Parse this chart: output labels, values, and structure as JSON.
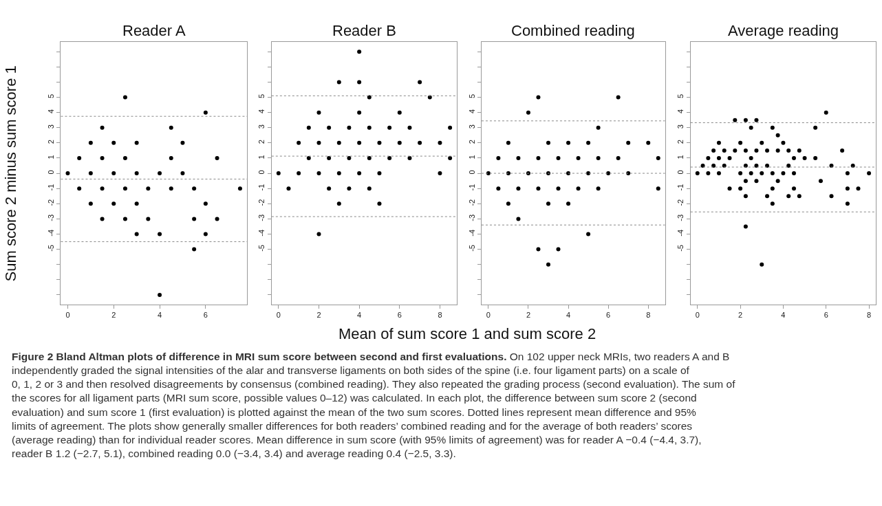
{
  "chart_data": [
    {
      "type": "scatter",
      "title": "Reader A",
      "ylabel": "Sum score 2 minus sum score 1",
      "annotations": [
        "Figure 2 Bland Altman plots of difference in MRI sum score between second and first evaluations. On 102 upper neck MRIs, two readers A and B independently graded the signal intensities of the alar and transverse ligaments on both sides of the spine (i.e. four ligament parts) on a scale of 0, 1, 2 or 3 and then resolved disagreements by consensus (combined reading). They also repeated the grading process (second evaluation). The sum of the scores for all ligament parts (MRI sum score, possible values 0–12) was calculated. In each plot, the difference between sum score 2 (second evaluation) and sum score 1 (first evaluation) is plotted against the mean of the two sum scores. Dotted lines represent mean difference and 95% limits of agreement. The plots show generally smaller differences for both readers’ combined reading and for the average of both readers’ scores (average reading) than for individual reader scores. Mean difference in sum score (with 95% limits of agreement) was for reader A −0.4 (−4.4, 3.7), reader B 1.2 (−2.7, 5.1), combined reading 0.0 (−3.4, 3.4) and average reading 0.4 (−2.5, 3.3)."
      ],
      "x": [
        0,
        0.5,
        0.5,
        1,
        1,
        1,
        1.5,
        1.5,
        1.5,
        1.5,
        2,
        2,
        2,
        2.5,
        2.5,
        2.5,
        2.5,
        3,
        3,
        3,
        3,
        3.5,
        3.5,
        4,
        4,
        4,
        4.5,
        4.5,
        4.5,
        5,
        5,
        5.5,
        5.5,
        5.5,
        6,
        6,
        6,
        6.5,
        6.5,
        7.5
      ],
      "values": [
        0,
        1,
        -1,
        2,
        0,
        -2,
        3,
        1,
        -1,
        -3,
        2,
        0,
        -2,
        5,
        1,
        -1,
        -3,
        2,
        0,
        -2,
        -4,
        -1,
        -3,
        0,
        -4,
        -8,
        3,
        1,
        -1,
        2,
        0,
        -1,
        -3,
        -5,
        4,
        -2,
        -4,
        1,
        -3,
        -1
      ],
      "color": "#000000",
      "marker": "circle",
      "xlim": [
        -0.3,
        7.8
      ],
      "xticks": [
        0,
        2,
        4,
        6
      ],
      "ylim": [
        -8.64,
        8.64
      ],
      "yticks": [
        {
          "value": -8,
          "label": null
        },
        {
          "value": -7,
          "label": null
        },
        {
          "value": -6,
          "label": null
        },
        -5,
        -4,
        -3,
        -2,
        -1,
        0,
        1,
        2,
        3,
        4,
        5,
        {
          "value": 6,
          "label": null
        },
        {
          "value": 7,
          "label": null
        },
        {
          "value": 8,
          "label": null
        }
      ],
      "ref_lines": [
        {
          "axis": "y",
          "value": 3.75,
          "color": "#888888",
          "line_style": "dotted"
        },
        {
          "axis": "y",
          "value": -0.38,
          "color": "#888888",
          "line_style": "dotted"
        },
        {
          "axis": "y",
          "value": -4.5,
          "color": "#888888",
          "line_style": "dotted"
        }
      ]
    },
    {
      "type": "scatter",
      "title": "Reader B",
      "xlabel": "Mean of sum score 1 and sum score 2",
      "x": [
        0,
        0.5,
        1,
        1,
        1.5,
        1.5,
        2,
        2,
        2,
        2,
        2.5,
        2.5,
        2.5,
        3,
        3,
        3,
        3,
        3.5,
        3.5,
        3.5,
        4,
        4,
        4,
        4,
        4,
        4.5,
        4.5,
        4.5,
        4.5,
        5,
        5,
        5,
        5.5,
        5.5,
        6,
        6,
        6.5,
        6.5,
        7,
        7,
        7.5,
        8,
        8,
        8.5,
        8.5
      ],
      "values": [
        0,
        -1,
        2,
        0,
        3,
        1,
        4,
        2,
        0,
        -4,
        3,
        1,
        -1,
        6,
        2,
        0,
        -2,
        3,
        1,
        -1,
        8,
        6,
        4,
        2,
        0,
        5,
        3,
        1,
        -1,
        2,
        0,
        -2,
        3,
        1,
        4,
        2,
        3,
        1,
        6,
        2,
        5,
        2,
        0,
        3,
        1
      ],
      "color": "#000000",
      "marker": "circle",
      "xlim": [
        -0.34,
        8.84
      ],
      "xticks": [
        0,
        2,
        4,
        6,
        8
      ],
      "ylim": [
        -8.64,
        8.64
      ],
      "yticks": [
        {
          "value": -8,
          "label": null
        },
        {
          "value": -7,
          "label": null
        },
        {
          "value": -6,
          "label": null
        },
        -5,
        -4,
        -3,
        -2,
        -1,
        0,
        1,
        2,
        3,
        4,
        5,
        {
          "value": 6,
          "label": null
        },
        {
          "value": 7,
          "label": null
        },
        {
          "value": 8,
          "label": null
        }
      ],
      "ref_lines": [
        {
          "axis": "y",
          "value": 5.1,
          "color": "#888888",
          "line_style": "dotted"
        },
        {
          "axis": "y",
          "value": 1.13,
          "color": "#888888",
          "line_style": "dotted"
        },
        {
          "axis": "y",
          "value": -2.85,
          "color": "#888888",
          "line_style": "dotted"
        }
      ]
    },
    {
      "type": "scatter",
      "title": "Combined reading",
      "x": [
        0,
        0.5,
        0.5,
        1,
        1,
        1,
        1.5,
        1.5,
        1.5,
        2,
        2,
        2.5,
        2.5,
        2.5,
        2.5,
        3,
        3,
        3,
        3,
        3.5,
        3.5,
        3.5,
        4,
        4,
        4,
        4.5,
        4.5,
        5,
        5,
        5,
        5.5,
        5.5,
        5.5,
        6,
        6.5,
        6.5,
        7,
        7,
        8,
        8.5,
        8.5
      ],
      "values": [
        0,
        1,
        -1,
        2,
        0,
        -2,
        1,
        -1,
        -3,
        4,
        0,
        5,
        1,
        -1,
        -5,
        2,
        0,
        -2,
        -6,
        1,
        -1,
        -5,
        2,
        0,
        -2,
        1,
        -1,
        2,
        0,
        -4,
        3,
        1,
        -1,
        0,
        5,
        1,
        2,
        0,
        2,
        1,
        -1
      ],
      "color": "#000000",
      "marker": "circle",
      "xlim": [
        -0.34,
        8.84
      ],
      "xticks": [
        0,
        2,
        4,
        6,
        8
      ],
      "ylim": [
        -8.64,
        8.64
      ],
      "yticks": [
        {
          "value": -8,
          "label": null
        },
        {
          "value": -7,
          "label": null
        },
        {
          "value": -6,
          "label": null
        },
        -5,
        -4,
        -3,
        -2,
        -1,
        0,
        1,
        2,
        3,
        4,
        5,
        {
          "value": 6,
          "label": null
        },
        {
          "value": 7,
          "label": null
        },
        {
          "value": 8,
          "label": null
        }
      ],
      "ref_lines": [
        {
          "axis": "y",
          "value": 3.45,
          "color": "#888888",
          "line_style": "dotted"
        },
        {
          "axis": "y",
          "value": 0.0,
          "color": "#888888",
          "line_style": "dotted"
        },
        {
          "axis": "y",
          "value": -3.4,
          "color": "#888888",
          "line_style": "dotted"
        }
      ]
    },
    {
      "type": "scatter",
      "title": "Average reading",
      "x": [
        1.75,
        2.25,
        2.75,
        6,
        2.5,
        3.5,
        5.5,
        3.75,
        1,
        2,
        3,
        4,
        0.75,
        1.25,
        1.75,
        2.25,
        2.75,
        3.25,
        3.75,
        4.25,
        4.75,
        6.75,
        0.5,
        1,
        1.5,
        2.5,
        4.5,
        5,
        5.5,
        0.25,
        0.75,
        1.25,
        2.25,
        2.75,
        3.25,
        4.25,
        6.25,
        7.25,
        0,
        0.5,
        1,
        2,
        2.5,
        3,
        3.5,
        4,
        4.5,
        7,
        8,
        2.25,
        2.75,
        3.75,
        5.75,
        1.5,
        2,
        3.5,
        4.5,
        7,
        7.5,
        2.25,
        3.25,
        4.25,
        4.75,
        6.25,
        3.5,
        7,
        2.25,
        3
      ],
      "values": [
        3.5,
        3.5,
        3.5,
        4,
        3,
        3,
        3,
        2.5,
        2,
        2,
        2,
        2,
        1.5,
        1.5,
        1.5,
        1.5,
        1.5,
        1.5,
        1.5,
        1.5,
        1.5,
        1.5,
        1,
        1,
        1,
        1,
        1,
        1,
        1,
        0.5,
        0.5,
        0.5,
        0.5,
        0.5,
        0.5,
        0.5,
        0.5,
        0.5,
        0,
        0,
        0,
        0,
        0,
        0,
        0,
        0,
        0,
        0,
        0,
        -0.5,
        -0.5,
        -0.5,
        -0.5,
        -1,
        -1,
        -1,
        -1,
        -1,
        -1,
        -1.5,
        -1.5,
        -1.5,
        -1.5,
        -1.5,
        -2,
        -2,
        -3.5,
        -6
      ],
      "color": "#000000",
      "marker": "circle",
      "xlim": [
        -0.32,
        8.32
      ],
      "xticks": [
        0,
        2,
        4,
        6,
        8
      ],
      "ylim": [
        -8.64,
        8.64
      ],
      "yticks": [
        {
          "value": -8,
          "label": null
        },
        {
          "value": -7,
          "label": null
        },
        {
          "value": -6,
          "label": null
        },
        -5,
        -4,
        -3,
        -2,
        -1,
        0,
        1,
        2,
        3,
        4,
        5,
        {
          "value": 6,
          "label": null
        },
        {
          "value": 7,
          "label": null
        },
        {
          "value": 8,
          "label": null
        }
      ],
      "ref_lines": [
        {
          "axis": "y",
          "value": 3.33,
          "color": "#888888",
          "line_style": "dotted"
        },
        {
          "axis": "y",
          "value": 0.41,
          "color": "#888888",
          "line_style": "dotted"
        },
        {
          "axis": "y",
          "value": -2.54,
          "color": "#888888",
          "line_style": "dotted"
        }
      ]
    }
  ]
}
